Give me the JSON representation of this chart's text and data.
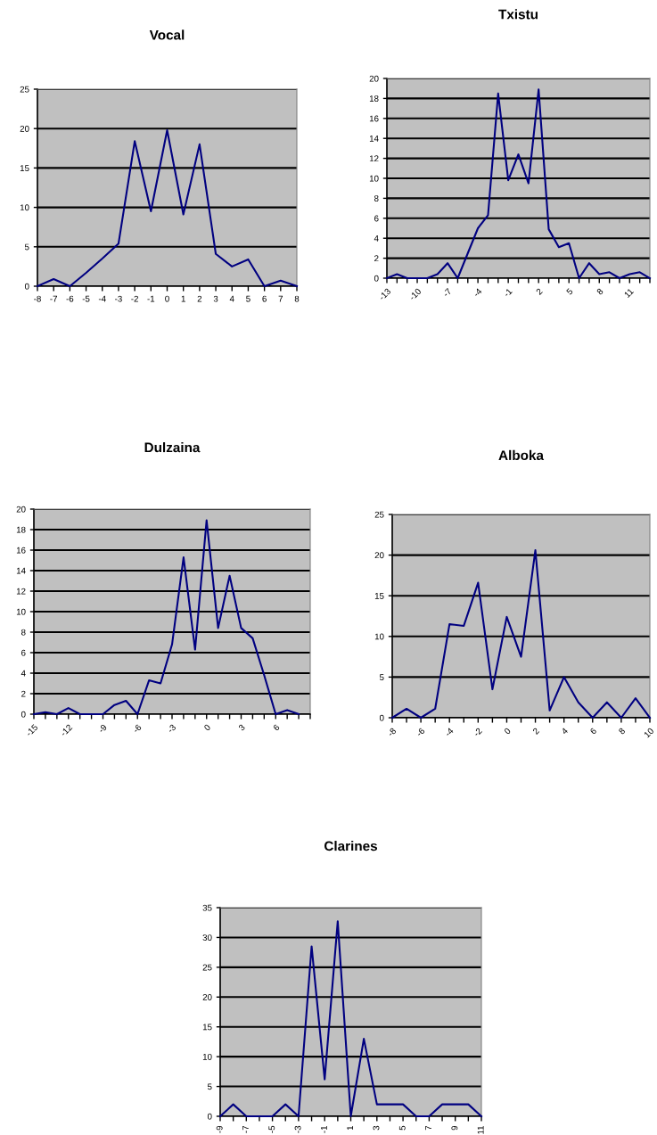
{
  "chart_data": [
    {
      "type": "line",
      "title": "Vocal",
      "categories": [
        "-8",
        "-7",
        "-6",
        "-5",
        "-4",
        "-3",
        "-2",
        "-1",
        "0",
        "1",
        "2",
        "3",
        "4",
        "5",
        "6",
        "7",
        "8"
      ],
      "ylim": [
        0,
        25
      ],
      "yticks": [
        0,
        5,
        10,
        15,
        20,
        25
      ],
      "grid": "y",
      "series": [
        {
          "color": "#000080",
          "values": [
            0,
            0.9,
            0,
            1.7,
            3.5,
            5.4,
            18.4,
            9.5,
            19.8,
            9.1,
            18,
            4.1,
            2.5,
            3.4,
            0,
            0.7,
            0
          ]
        }
      ]
    },
    {
      "type": "line",
      "title": "Txistu",
      "categories": [
        "-13",
        null,
        null,
        "-10",
        null,
        null,
        "-7",
        null,
        null,
        "-4",
        null,
        null,
        "-1",
        null,
        null,
        "2",
        null,
        null,
        "5",
        null,
        null,
        "8",
        null,
        null,
        "11",
        null,
        null
      ],
      "ylim": [
        0,
        20
      ],
      "yticks": [
        0,
        2,
        4,
        6,
        8,
        10,
        12,
        14,
        16,
        18,
        20
      ],
      "grid": "y",
      "series": [
        {
          "color": "#000080",
          "values": [
            0,
            0.4,
            0,
            0,
            0,
            0.4,
            1.5,
            0,
            2.5,
            5,
            6.3,
            18.5,
            9.8,
            12.4,
            9.5,
            18.9,
            4.9,
            3.1,
            3.5,
            0,
            1.5,
            0.4,
            0.6,
            0,
            0.4,
            0.6,
            0
          ]
        }
      ]
    },
    {
      "type": "line",
      "title": "Dulzaina",
      "categories": [
        "-15",
        null,
        null,
        "-12",
        null,
        null,
        "-9",
        null,
        null,
        "-6",
        null,
        null,
        "-3",
        null,
        null,
        "0",
        null,
        null,
        "3",
        null,
        null,
        "6",
        null,
        null,
        null
      ],
      "ylim": [
        0,
        20
      ],
      "yticks": [
        0,
        2,
        4,
        6,
        8,
        10,
        12,
        14,
        16,
        18,
        20
      ],
      "grid": "y",
      "series": [
        {
          "color": "#000080",
          "values": [
            0,
            0.2,
            0,
            0.6,
            0,
            0,
            0,
            0.9,
            1.3,
            0,
            3.3,
            3.0,
            6.8,
            15.3,
            6.3,
            18.9,
            8.4,
            13.5,
            8.4,
            7.4,
            3.8,
            0,
            0.4,
            0,
            null
          ]
        }
      ]
    },
    {
      "type": "line",
      "title": "Alboka",
      "categories": [
        "-8",
        null,
        "-6",
        null,
        "-4",
        null,
        "-2",
        null,
        "0",
        null,
        "2",
        null,
        "4",
        null,
        "6",
        null,
        "8",
        null,
        "10"
      ],
      "ylim": [
        0,
        25
      ],
      "yticks": [
        0,
        5,
        10,
        15,
        20,
        25
      ],
      "grid": "y",
      "series": [
        {
          "color": "#000080",
          "values": [
            0,
            1.1,
            0,
            1.1,
            11.5,
            11.3,
            16.6,
            3.5,
            12.4,
            7.5,
            20.6,
            0.9,
            5,
            1.9,
            0,
            1.9,
            0,
            2.4,
            0
          ]
        }
      ]
    },
    {
      "type": "line",
      "title": "Clarines",
      "categories": [
        "-9",
        null,
        "-7",
        null,
        "-5",
        null,
        "-3",
        null,
        "-1",
        null,
        "1",
        null,
        "3",
        null,
        "5",
        null,
        "7",
        null,
        "9",
        null,
        "11"
      ],
      "ylim": [
        0,
        35
      ],
      "yticks": [
        0,
        5,
        10,
        15,
        20,
        25,
        30,
        35
      ],
      "grid": "y",
      "series": [
        {
          "color": "#000080",
          "values": [
            0,
            2,
            0,
            0,
            0,
            2,
            0,
            28.5,
            6.2,
            32.7,
            0,
            13,
            2,
            2,
            2,
            0,
            0,
            2,
            2,
            2,
            0
          ]
        }
      ]
    }
  ]
}
